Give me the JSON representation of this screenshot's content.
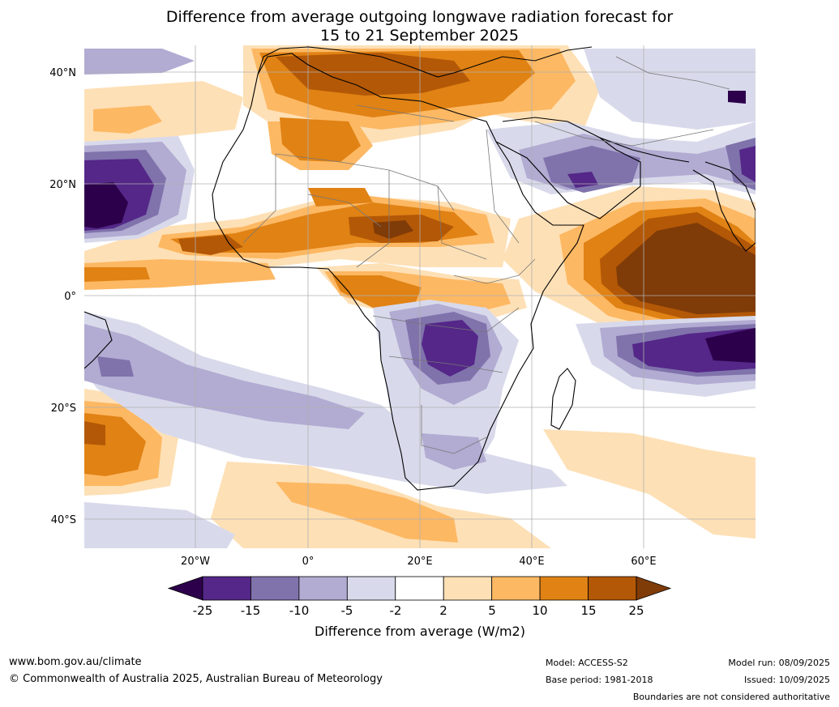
{
  "title": {
    "line1": "Difference from average outgoing longwave radiation forecast for",
    "line2": "15 to 21 September 2025"
  },
  "axes": {
    "lat_ticks": [
      "40°N",
      "20°N",
      "0°",
      "20°S",
      "40°S"
    ],
    "lon_ticks": [
      "20°W",
      "0°",
      "20°E",
      "40°E",
      "60°E"
    ]
  },
  "colorbar": {
    "title": "Difference from average (W/m2)",
    "tick_labels": [
      "-25",
      "-15",
      "-10",
      "-5",
      "-2",
      "2",
      "5",
      "10",
      "15",
      "25"
    ],
    "colors": [
      "#2d004b",
      "#542788",
      "#8073ac",
      "#b2abd2",
      "#d8daeb",
      "#ffffff",
      "#fee0b6",
      "#fdb863",
      "#e08214",
      "#b35806",
      "#7f3b08"
    ]
  },
  "footer": {
    "website": "www.bom.gov.au/climate",
    "copyright": "© Commonwealth of Australia 2025, Australian Bureau of Meteorology",
    "model": "Model: ACCESS-S2",
    "base_period": "Base period: 1981-2018",
    "model_run": "Model run: 08/09/2025",
    "issued": "Issued: 10/09/2025",
    "disclaimer": "Boundaries are not considered authoritative"
  }
}
